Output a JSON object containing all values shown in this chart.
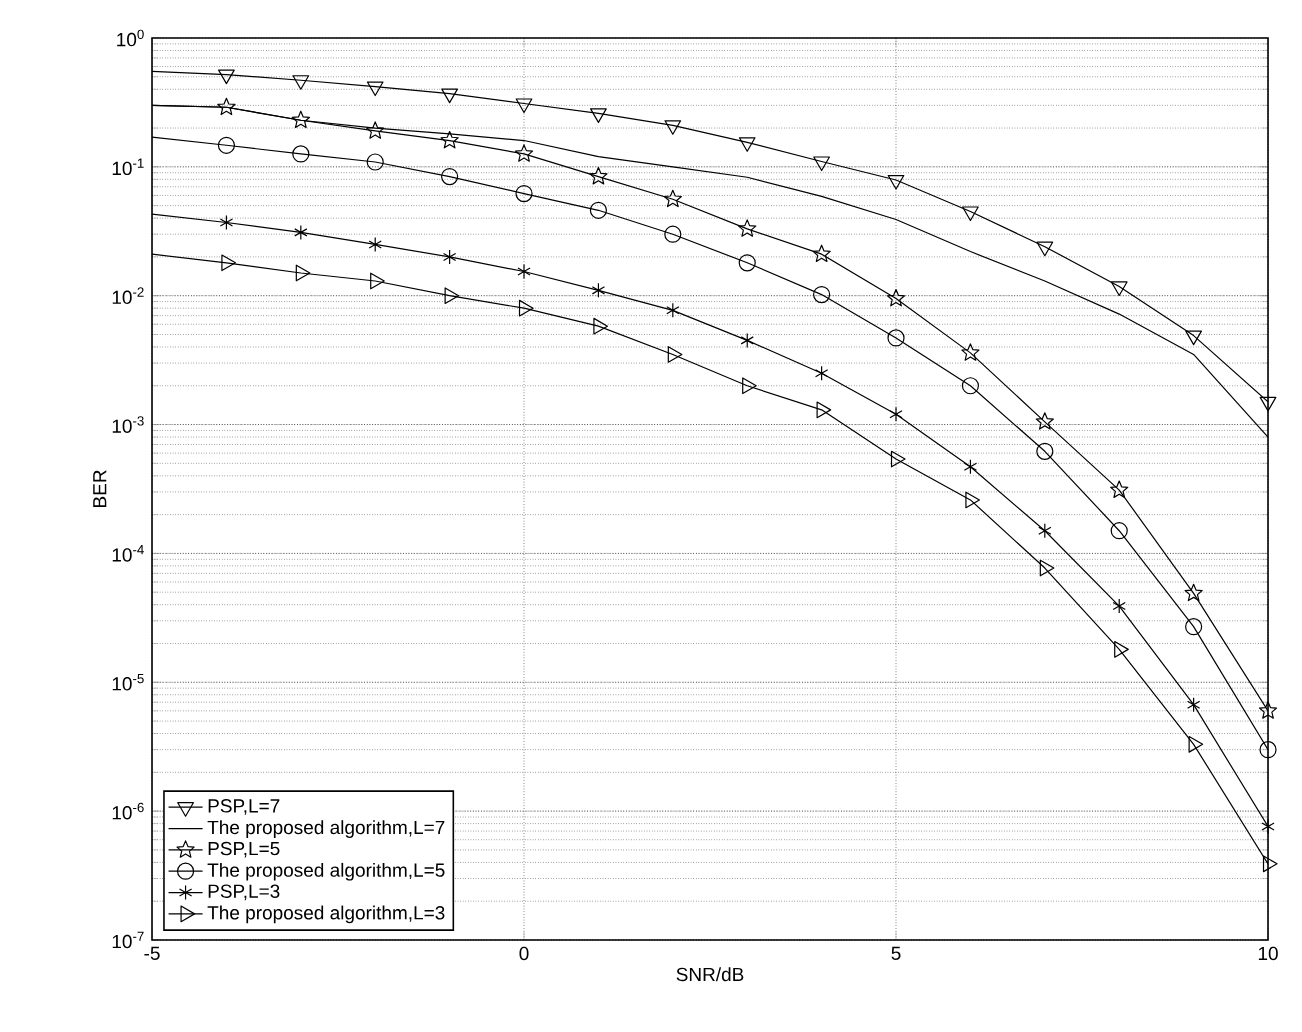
{
  "chart_data": {
    "type": "line",
    "xlabel": "SNR/dB",
    "ylabel": "BER",
    "log": "y",
    "grid": true,
    "legend": "bottom left",
    "x": [
      -5,
      -4,
      -3,
      -2,
      -1,
      0,
      1,
      2,
      3,
      4,
      5,
      6,
      7,
      8,
      9,
      10
    ],
    "xlim": [
      -5,
      10
    ],
    "xticks": [
      -5,
      0,
      5,
      10
    ],
    "ylim": [
      1e-07,
      1
    ],
    "yticks": [
      {
        "value": 1e-07,
        "label": "10$^{-7}$"
      },
      {
        "value": 1e-06,
        "label": "10$^{-6}$"
      },
      {
        "value": 1e-05,
        "label": "10$^{-5}$"
      },
      {
        "value": 0.0001,
        "label": "10$^{-4}$"
      },
      {
        "value": 0.001,
        "label": "10$^{-3}$"
      },
      {
        "value": 0.01,
        "label": "10$^{-2}$"
      },
      {
        "value": 0.1,
        "label": "10$^{-1}$"
      },
      {
        "value": 1,
        "label": "10$^{0}$"
      }
    ],
    "series": [
      {
        "name": "PSP,L=7",
        "color": "#000000",
        "marker": "triangle-down",
        "values": [
          0.55,
          0.52,
          0.47,
          0.42,
          0.37,
          0.31,
          0.26,
          0.21,
          0.155,
          0.11,
          0.079,
          0.045,
          0.024,
          0.0118,
          0.0049,
          0.0015
        ]
      },
      {
        "name": "The proposed algorithm,L=7",
        "color": "#000000",
        "marker": "none",
        "values": [
          0.3,
          0.29,
          0.23,
          0.2,
          0.18,
          0.16,
          0.12,
          0.1,
          0.083,
          0.059,
          0.039,
          0.022,
          0.013,
          0.0072,
          0.0035,
          0.0008
        ]
      },
      {
        "name": "PSP,L=5",
        "color": "#000000",
        "marker": "star",
        "values": [
          0.3,
          0.29,
          0.23,
          0.19,
          0.16,
          0.126,
          0.084,
          0.056,
          0.033,
          0.021,
          0.0095,
          0.0036,
          0.00105,
          0.00031,
          4.9e-05,
          6e-06
        ]
      },
      {
        "name": "The proposed algorithm,L=5",
        "color": "#000000",
        "marker": "circle",
        "values": [
          0.17,
          0.147,
          0.126,
          0.109,
          0.084,
          0.062,
          0.046,
          0.03,
          0.018,
          0.0102,
          0.0047,
          0.002,
          0.00062,
          0.00015,
          2.7e-05,
          3e-06
        ]
      },
      {
        "name": "PSP,L=3",
        "color": "#000000",
        "marker": "cross",
        "values": [
          0.043,
          0.037,
          0.031,
          0.025,
          0.02,
          0.0154,
          0.011,
          0.0077,
          0.0045,
          0.0025,
          0.0012,
          0.00047,
          0.00015,
          3.9e-05,
          6.7e-06,
          7.6e-07
        ]
      },
      {
        "name": "The proposed algorithm,L=3",
        "color": "#000000",
        "marker": "triangle-right",
        "values": [
          0.021,
          0.018,
          0.015,
          0.013,
          0.01,
          0.008,
          0.0058,
          0.0035,
          0.002,
          0.0013,
          0.00054,
          0.00026,
          7.7e-05,
          1.8e-05,
          3.3e-06,
          3.9e-07
        ]
      }
    ]
  }
}
